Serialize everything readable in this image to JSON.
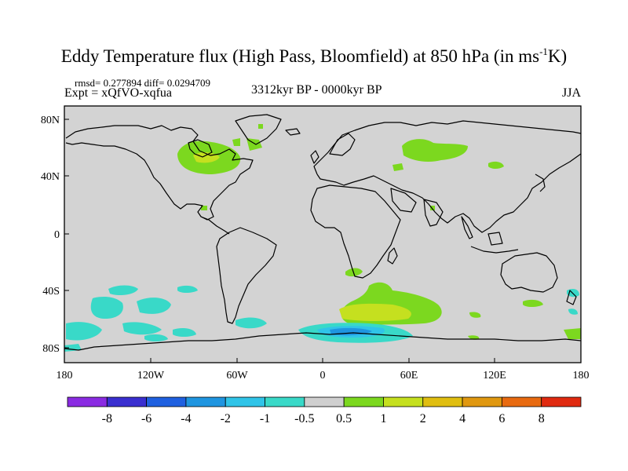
{
  "title": {
    "main": "Eddy Temperature flux (High Pass, Bloomfield) at 850 hPa (in ms",
    "superscript": "-1",
    "unit_end": "K)"
  },
  "stats": "rmsd= 0.277894 diff= 0.0294709",
  "experiment": "Expt = xQfVO-xqfua",
  "period": "3312kyr BP - 0000kyr BP",
  "season": "JJA",
  "axes": {
    "y_ticks": [
      "80N",
      "40N",
      "0",
      "40S",
      "80S"
    ],
    "x_ticks": [
      "180",
      "120W",
      "60W",
      "0",
      "60E",
      "120E",
      "180"
    ]
  },
  "colorbar": {
    "colors": [
      "#8a2be2",
      "#3a2fd0",
      "#1f60e0",
      "#1f95e0",
      "#30c4e8",
      "#39d9c8",
      "#cfcfcf",
      "#7cd81f",
      "#c5e01f",
      "#e0be10",
      "#e09810",
      "#e86a10",
      "#e02a10"
    ],
    "labels": [
      "-8",
      "-6",
      "-4",
      "-2",
      "-1",
      "-0.5",
      "0.5",
      "1",
      "2",
      "4",
      "6",
      "8"
    ]
  },
  "colors": {
    "background": "#d3d3d3",
    "positive_low": "#7cd81f",
    "positive_mid": "#c5e01f",
    "negative_low": "#39d9c8",
    "negative_mid": "#30c4e8",
    "negative_high": "#1f95e0"
  }
}
